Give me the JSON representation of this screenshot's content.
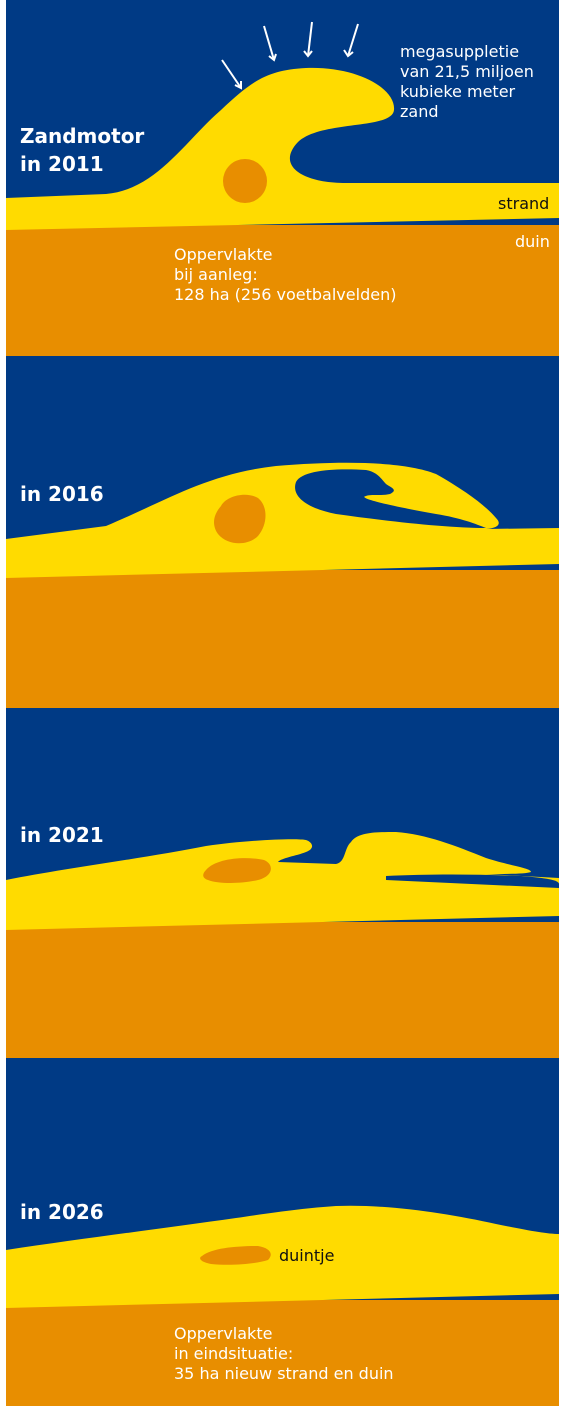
{
  "colors": {
    "sea": "#003a85",
    "sand": "#ffdb00",
    "dune": "#e88e00",
    "label_light": "#ffffff",
    "label_dark": "#111111"
  },
  "icons": [
    "arrow-down-icon"
  ],
  "panels": [
    {
      "year_lines": [
        "Zandmotor",
        "in 2011"
      ],
      "annotation_lines": [
        "megasuppletie",
        "van 21,5 miljoen",
        "kubieke meter",
        "zand"
      ],
      "strand_label": "strand",
      "duin_label": "duin",
      "area_lines": [
        "Oppervlakte",
        "bij aanleg:",
        "128 ha (256 voetbalvelden)"
      ]
    },
    {
      "year_lines": [
        "in 2016"
      ]
    },
    {
      "year_lines": [
        "in 2021"
      ]
    },
    {
      "year_lines": [
        "in 2026"
      ],
      "duintje_label": "duintje",
      "area_lines": [
        "Oppervlakte",
        "in eindsituatie:",
        "35 ha nieuw strand en duin"
      ]
    }
  ]
}
